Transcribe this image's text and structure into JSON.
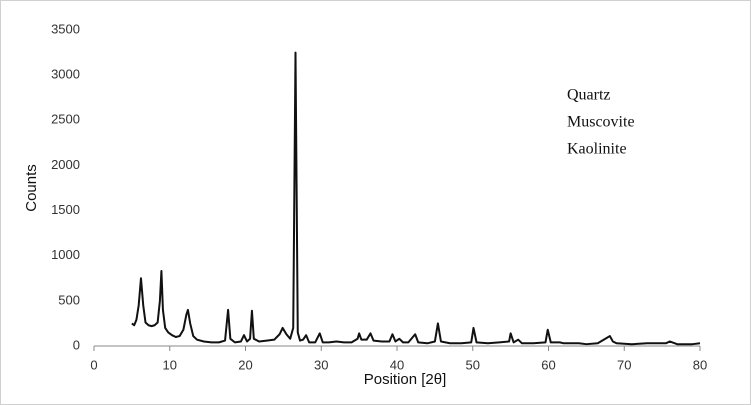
{
  "chart_data": {
    "type": "line",
    "color": "#111111",
    "x_label": "Position [2θ]",
    "y_label": "Counts",
    "annotations": [
      "Quartz",
      "Muscovite",
      "Kaolinite"
    ],
    "xlim": [
      0,
      80
    ],
    "xticks": [
      0,
      10,
      20,
      30,
      40,
      50,
      60,
      70,
      80
    ],
    "ylim": [
      0,
      3500
    ],
    "yticks": [
      0,
      500,
      1000,
      1500,
      2000,
      2500,
      3000,
      3500
    ],
    "grid": false,
    "x": [
      5,
      5.3,
      5.6,
      5.9,
      6.2,
      6.5,
      6.8,
      7.2,
      7.6,
      8.0,
      8.4,
      8.7,
      8.9,
      9.1,
      9.4,
      9.8,
      10.3,
      10.8,
      11.3,
      11.8,
      12.2,
      12.4,
      12.7,
      13.1,
      13.6,
      14.5,
      15.5,
      16.5,
      17.3,
      17.7,
      18.0,
      18.6,
      19.4,
      19.8,
      20.2,
      20.6,
      20.85,
      21.1,
      21.8,
      22.8,
      23.8,
      24.5,
      24.9,
      25.4,
      25.9,
      26.3,
      26.6,
      26.9,
      27.2,
      27.6,
      28.0,
      28.4,
      29.2,
      29.8,
      30.2,
      31,
      32,
      33,
      34,
      34.8,
      35.0,
      35.3,
      36.0,
      36.5,
      36.9,
      38,
      39.0,
      39.4,
      39.8,
      40.3,
      40.8,
      41.5,
      42.4,
      42.8,
      44,
      45.0,
      45.4,
      45.8,
      47,
      48.5,
      49.8,
      50.1,
      50.5,
      52,
      53.5,
      54.8,
      55.0,
      55.4,
      56,
      56.5,
      58,
      59.6,
      59.9,
      60.3,
      61.5,
      62,
      64,
      65,
      66.5,
      67.7,
      68.1,
      68.5,
      69,
      71,
      73,
      75.5,
      76,
      77,
      79,
      80
    ],
    "values": [
      250,
      230,
      290,
      450,
      750,
      450,
      260,
      230,
      220,
      230,
      260,
      500,
      830,
      400,
      200,
      150,
      120,
      100,
      110,
      180,
      350,
      400,
      250,
      110,
      70,
      50,
      40,
      40,
      60,
      400,
      80,
      40,
      50,
      120,
      50,
      80,
      390,
      80,
      50,
      60,
      70,
      130,
      200,
      130,
      80,
      200,
      3250,
      150,
      60,
      70,
      120,
      40,
      40,
      140,
      40,
      40,
      50,
      40,
      40,
      80,
      140,
      70,
      70,
      140,
      60,
      50,
      50,
      130,
      50,
      80,
      40,
      40,
      130,
      40,
      30,
      50,
      250,
      50,
      30,
      30,
      40,
      200,
      40,
      30,
      40,
      50,
      140,
      40,
      70,
      30,
      30,
      40,
      180,
      40,
      40,
      30,
      30,
      20,
      30,
      90,
      110,
      50,
      30,
      20,
      30,
      30,
      50,
      20,
      20,
      30
    ]
  }
}
